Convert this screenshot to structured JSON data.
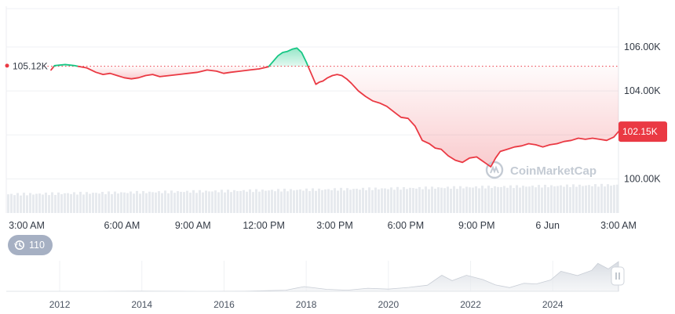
{
  "chart_data": {
    "type": "line",
    "title": "",
    "start_price_label": "105.12K",
    "current_price_label": "102.15K",
    "reference_price": 105.12,
    "y_unit": "K",
    "yticks": [
      {
        "value": 106,
        "label": "106.00K"
      },
      {
        "value": 104,
        "label": "104.00K"
      },
      {
        "value": 100,
        "label": "100.00K"
      }
    ],
    "ylim": [
      98.45,
      107.85
    ],
    "xlim": [
      0,
      24
    ],
    "xticks": [
      {
        "value": 0,
        "label": "3:00 AM"
      },
      {
        "value": 3,
        "label": "6:00 AM"
      },
      {
        "value": 6,
        "label": "9:00 AM"
      },
      {
        "value": 9,
        "label": "12:00 PM"
      },
      {
        "value": 12,
        "label": "3:00 PM"
      },
      {
        "value": 15,
        "label": "6:00 PM"
      },
      {
        "value": 18,
        "label": "9:00 PM"
      },
      {
        "value": 21,
        "label": "6 Jun"
      },
      {
        "value": 24,
        "label": "3:00 AM"
      }
    ],
    "series": [
      {
        "x": [
          0,
          0.15,
          0.6,
          1.0,
          1.5,
          1.9,
          2.2,
          2.5,
          2.8,
          3.1,
          3.4,
          3.7,
          4.0,
          4.3,
          4.6,
          5.0,
          5.4,
          5.8,
          6.2,
          6.6,
          7.0,
          7.3,
          7.6,
          8.0,
          8.4,
          8.8,
          9.2,
          9.4,
          9.6,
          9.8,
          10.0,
          10.2,
          10.4,
          10.6,
          10.8,
          11.0,
          11.2,
          11.35,
          11.5,
          11.7,
          11.9,
          12.1,
          12.3,
          12.5,
          12.7,
          13.0,
          13.3,
          13.6,
          13.9,
          14.2,
          14.5,
          14.8,
          15.1,
          15.4,
          15.7,
          16.0,
          16.25,
          16.5,
          16.8,
          17.1,
          17.4,
          17.7,
          18.0,
          18.2,
          18.4,
          18.6,
          18.8,
          19.0,
          19.3,
          19.6,
          19.9,
          20.2,
          20.5,
          20.8,
          21.1,
          21.4,
          21.7,
          22.0,
          22.3,
          22.6,
          22.9,
          23.2,
          23.5,
          23.8,
          24.0
        ],
        "values": [
          104.95,
          105.15,
          105.2,
          105.15,
          105.05,
          104.85,
          104.75,
          104.8,
          104.7,
          104.6,
          104.55,
          104.6,
          104.7,
          104.75,
          104.65,
          104.7,
          104.75,
          104.8,
          104.85,
          104.95,
          104.9,
          104.8,
          104.85,
          104.9,
          104.95,
          105.0,
          105.1,
          105.35,
          105.6,
          105.75,
          105.8,
          105.9,
          105.95,
          105.75,
          105.3,
          104.8,
          104.3,
          104.4,
          104.45,
          104.6,
          104.7,
          104.75,
          104.7,
          104.55,
          104.35,
          104.0,
          103.75,
          103.55,
          103.45,
          103.3,
          103.05,
          102.8,
          102.75,
          102.4,
          101.75,
          101.6,
          101.4,
          101.35,
          101.05,
          100.85,
          100.75,
          100.95,
          101.0,
          100.85,
          100.7,
          100.55,
          100.95,
          101.25,
          101.35,
          101.45,
          101.5,
          101.6,
          101.55,
          101.45,
          101.55,
          101.6,
          101.7,
          101.75,
          101.85,
          101.8,
          101.85,
          101.8,
          101.75,
          101.9,
          102.15
        ]
      }
    ],
    "grid": true,
    "legend": "none",
    "colors": {
      "down": "#ea3943",
      "up": "#16c784",
      "axis_text": "#333a45",
      "volume": "#e7eaee"
    },
    "watermark": "CoinMarketCap",
    "history_badge_count": "110",
    "overview": {
      "type": "area",
      "xticks": [
        {
          "value": 2012,
          "label": "2012"
        },
        {
          "value": 2014,
          "label": "2014"
        },
        {
          "value": 2016,
          "label": "2016"
        },
        {
          "value": 2018,
          "label": "2018"
        },
        {
          "value": 2020,
          "label": "2020"
        },
        {
          "value": 2022,
          "label": "2022"
        },
        {
          "value": 2024,
          "label": "2024"
        }
      ],
      "xlim": [
        2010.7,
        2025.6
      ],
      "ylim": [
        0,
        110
      ],
      "x": [
        2010.7,
        2012,
        2013,
        2013.9,
        2014.5,
        2015.5,
        2016.5,
        2017.5,
        2017.95,
        2018.5,
        2019.0,
        2019.5,
        2020.0,
        2020.5,
        2020.95,
        2021.3,
        2021.55,
        2021.9,
        2022.3,
        2022.6,
        2022.95,
        2023.3,
        2023.6,
        2023.95,
        2024.2,
        2024.6,
        2024.95,
        2025.1,
        2025.35,
        2025.6
      ],
      "values": [
        0.1,
        0.1,
        0.2,
        0.8,
        0.5,
        0.3,
        0.6,
        4,
        17,
        7,
        4,
        11,
        8,
        10,
        25,
        58,
        35,
        62,
        40,
        22,
        17,
        25,
        28,
        43,
        68,
        60,
        75,
        98,
        85,
        104
      ]
    }
  }
}
